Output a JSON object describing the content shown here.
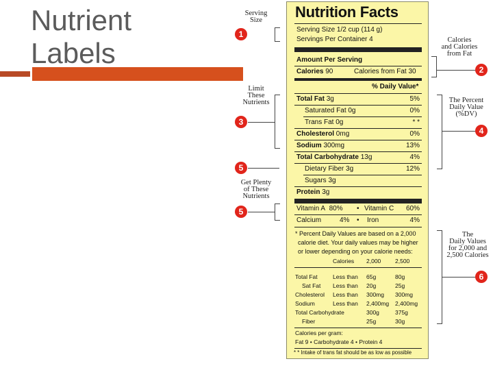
{
  "slide": {
    "title_line1": "Nutrient",
    "title_line2": "Labels"
  },
  "annotations": {
    "serving_size_l1": "Serving",
    "serving_size_l2": "Size",
    "calories_l1": "Calories",
    "calories_l2": "and Calories",
    "calories_l3": "from Fat",
    "limit_l1": "Limit",
    "limit_l2": "These",
    "limit_l3": "Nutrients",
    "dv_l1": "The Percent",
    "dv_l2": "Daily Value",
    "dv_l3": "(%DV)",
    "plenty_l1": "Get Plenty",
    "plenty_l2": "of These",
    "plenty_l3": "Nutrients",
    "footnote_l1": "The",
    "footnote_l2": "Daily Values",
    "footnote_l3": "for 2,000 and",
    "footnote_l4": "2,500 Calories",
    "badge1": "1",
    "badge2": "2",
    "badge3": "3",
    "badge4": "4",
    "badge5a": "5",
    "badge5b": "5",
    "badge6": "6"
  },
  "label": {
    "title": "Nutrition Facts",
    "serving_size": "Serving Size 1/2 cup (114 g)",
    "servings_per_container": "Servings Per Container 4",
    "amount_per_serving": "Amount Per Serving",
    "calories_label": "Calories",
    "calories_value": "90",
    "calories_fat": "Calories from Fat 30",
    "dv_header": "% Daily Value*",
    "nutrients": [
      {
        "name": "Total Fat",
        "amount": "3g",
        "dv": "5%"
      },
      {
        "name": "Saturated Fat",
        "amount": "0g",
        "dv": "0%"
      },
      {
        "name": "Trans Fat",
        "amount": "0g",
        "dv": "* *"
      },
      {
        "name": "Cholesterol",
        "amount": "0mg",
        "dv": "0%"
      },
      {
        "name": "Sodium",
        "amount": "300mg",
        "dv": "13%"
      },
      {
        "name": "Total Carbohydrate",
        "amount": "13g",
        "dv": "4%"
      },
      {
        "name": "Dietary Fiber",
        "amount": "3g",
        "dv": "12%"
      },
      {
        "name": "Sugars",
        "amount": "3g",
        "dv": ""
      },
      {
        "name": "Protein",
        "amount": "3g",
        "dv": ""
      }
    ],
    "vitamins": {
      "vit_a": "Vitamin A",
      "vit_a_dv": "80%",
      "bullet": "•",
      "vit_c": "Vitamin C",
      "vit_c_dv": "60%",
      "calcium": "Calcium",
      "calcium_dv": "4%",
      "iron": "Iron",
      "iron_dv": "4%"
    },
    "footnote": {
      "line1": "* Percent Daily Values are based on a 2,000",
      "line2": "calorie diet. Your daily values may be higher",
      "line3": "or lower depending on your calorie needs:",
      "col_calories": "Calories",
      "col_2000": "2,000",
      "col_2500": "2,500",
      "rows": [
        {
          "name": "Total Fat",
          "cond": "Less than",
          "a": "65g",
          "b": "80g"
        },
        {
          "name": "Sat Fat",
          "cond": "Less than",
          "a": "20g",
          "b": "25g"
        },
        {
          "name": "Cholesterol",
          "cond": "Less than",
          "a": "300mg",
          "b": "300mg"
        },
        {
          "name": "Sodium",
          "cond": "Less than",
          "a": "2,400mg",
          "b": "2,400mg"
        },
        {
          "name": "Total Carbohydrate",
          "cond": "",
          "a": "300g",
          "b": "375g"
        },
        {
          "name": "Fiber",
          "cond": "",
          "a": "25g",
          "b": "30g"
        }
      ],
      "per_gram": "Calories per gram:",
      "per_gram_values": "Fat  9  •  Carbohydrate  4  •  Protein  4",
      "trans_note": "* * Intake of trans fat should be as low as possible"
    }
  }
}
